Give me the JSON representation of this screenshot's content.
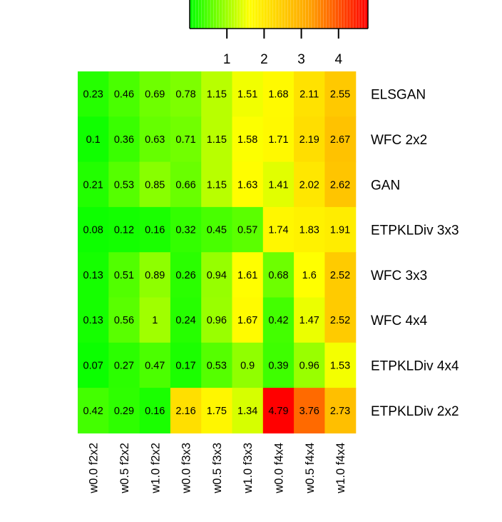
{
  "chart_data": {
    "type": "heatmap",
    "title": "",
    "xlabel": "",
    "ylabel": "",
    "columns": [
      "w0.0 f2x2",
      "w0.5 f2x2",
      "w1.0 f2x2",
      "w0.0 f3x3",
      "w0.5 f3x3",
      "w1.0 f3x3",
      "w0.0 f4x4",
      "w0.5 f4x4",
      "w1.0 f4x4"
    ],
    "rows": [
      "ELSGAN",
      "WFC 2x2",
      "GAN",
      "ETPKLDiv 3x3",
      "WFC 3x3",
      "WFC 4x4",
      "ETPKLDiv 4x4",
      "ETPKLDiv 2x2"
    ],
    "values": [
      [
        0.23,
        0.46,
        0.69,
        0.78,
        1.15,
        1.51,
        1.68,
        2.11,
        2.55
      ],
      [
        0.1,
        0.36,
        0.63,
        0.71,
        1.15,
        1.58,
        1.71,
        2.19,
        2.67
      ],
      [
        0.21,
        0.53,
        0.85,
        0.66,
        1.15,
        1.63,
        1.41,
        2.02,
        2.62
      ],
      [
        0.08,
        0.12,
        0.16,
        0.32,
        0.45,
        0.57,
        1.74,
        1.83,
        1.91
      ],
      [
        0.13,
        0.51,
        0.89,
        0.26,
        0.94,
        1.61,
        0.68,
        1.6,
        2.52
      ],
      [
        0.13,
        0.56,
        1,
        0.24,
        0.96,
        1.67,
        0.42,
        1.47,
        2.52
      ],
      [
        0.07,
        0.27,
        0.47,
        0.17,
        0.53,
        0.9,
        0.39,
        0.96,
        1.53
      ],
      [
        0.42,
        0.29,
        0.16,
        2.16,
        1.75,
        1.34,
        4.79,
        3.76,
        2.73
      ]
    ],
    "value_labels": [
      [
        "0.23",
        "0.46",
        "0.69",
        "0.78",
        "1.15",
        "1.51",
        "1.68",
        "2.11",
        "2.55"
      ],
      [
        "0.1",
        "0.36",
        "0.63",
        "0.71",
        "1.15",
        "1.58",
        "1.71",
        "2.19",
        "2.67"
      ],
      [
        "0.21",
        "0.53",
        "0.85",
        "0.66",
        "1.15",
        "1.63",
        "1.41",
        "2.02",
        "2.62"
      ],
      [
        "0.08",
        "0.12",
        "0.16",
        "0.32",
        "0.45",
        "0.57",
        "1.74",
        "1.83",
        "1.91"
      ],
      [
        "0.13",
        "0.51",
        "0.89",
        "0.26",
        "0.94",
        "1.61",
        "0.68",
        "1.6",
        "2.52"
      ],
      [
        "0.13",
        "0.56",
        "1",
        "0.24",
        "0.96",
        "1.67",
        "0.42",
        "1.47",
        "2.52"
      ],
      [
        "0.07",
        "0.27",
        "0.47",
        "0.17",
        "0.53",
        "0.9",
        "0.39",
        "0.96",
        "1.53"
      ],
      [
        "0.42",
        "0.29",
        "0.16",
        "2.16",
        "1.75",
        "1.34",
        "4.79",
        "3.76",
        "2.73"
      ]
    ],
    "color_scale": {
      "stops": [
        "#00ff00",
        "#ffff00",
        "#ffa500",
        "#ff0000"
      ],
      "key_range": [
        0,
        4.79
      ],
      "key_ticks": [
        1,
        2,
        3,
        4
      ],
      "key_tick_labels": [
        "1",
        "2",
        "3",
        "4"
      ]
    },
    "legend": "top",
    "grid": false
  }
}
